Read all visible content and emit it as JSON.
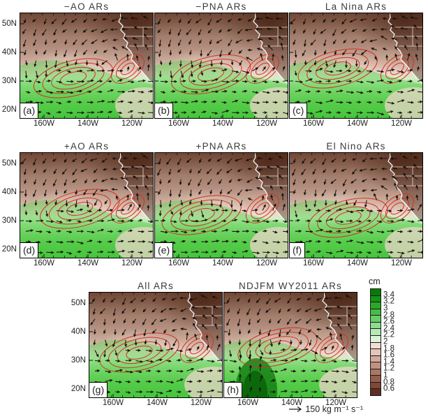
{
  "chart_data": {
    "type": "map",
    "subtype": "multi-panel vector-field composite maps with shaded anomalies and red contours",
    "panels": [
      {
        "id": "a",
        "label": "(a)",
        "title": "−AO ARs",
        "row": 1,
        "col": 1
      },
      {
        "id": "b",
        "label": "(b)",
        "title": "−PNA ARs",
        "row": 1,
        "col": 2
      },
      {
        "id": "c",
        "label": "(c)",
        "title": "La Nina ARs",
        "row": 1,
        "col": 3
      },
      {
        "id": "d",
        "label": "(d)",
        "title": "+AO ARs",
        "row": 2,
        "col": 1
      },
      {
        "id": "e",
        "label": "(e)",
        "title": "+PNA ARs",
        "row": 2,
        "col": 2
      },
      {
        "id": "f",
        "label": "(f)",
        "title": "El Nino ARs",
        "row": 2,
        "col": 3
      },
      {
        "id": "g",
        "label": "(g)",
        "title": "All ARs",
        "row": 3,
        "col": 1
      },
      {
        "id": "h",
        "label": "(h)",
        "title": "NDJFM WY2011 ARs",
        "row": 3,
        "col": 2
      }
    ],
    "axes": {
      "lat_ticks": [
        "50N",
        "40N",
        "30N",
        "20N"
      ],
      "lon_ticks": [
        "160W",
        "140W",
        "120W"
      ],
      "lat_range_estimate_deg_north": [
        17,
        54
      ],
      "lon_range_estimate_deg_west": [
        171,
        110
      ]
    },
    "colorbar": {
      "title": "cm",
      "boundary_labels": [
        "3.4",
        "3.2",
        "3",
        "2.8",
        "2.6",
        "2.4",
        "2.2",
        "2",
        "1.8",
        "1.6",
        "1.4",
        "1.2",
        "1",
        "0.8",
        "0.6"
      ],
      "levels": [
        0.6,
        0.8,
        1,
        1.2,
        1.4,
        1.6,
        1.8,
        2,
        2.2,
        2.4,
        2.6,
        2.8,
        3,
        3.2,
        3.4
      ],
      "colors_top_to_bottom": [
        "#077a07",
        "#149314",
        "#27a827",
        "#45bc45",
        "#68cd68",
        "#8edc8e",
        "#b5eab5",
        "#daf5d8",
        "#f2ded5",
        "#e4c6b9",
        "#d2ab9b",
        "#c09180",
        "#ab7664",
        "#955d4b",
        "#7e4836",
        "#602f22"
      ]
    },
    "vector_scale": {
      "arrow": "→",
      "value": 150,
      "label": "150 kg m⁻¹ s⁻¹",
      "units": "kg m⁻¹ s⁻¹"
    },
    "style_colors": {
      "contour_color": "#d32f23",
      "coastline_color": "#ffffff",
      "vector_color": "#15100a",
      "shading_high_green": "#077a07",
      "shading_low_brown": "#602f22"
    }
  }
}
